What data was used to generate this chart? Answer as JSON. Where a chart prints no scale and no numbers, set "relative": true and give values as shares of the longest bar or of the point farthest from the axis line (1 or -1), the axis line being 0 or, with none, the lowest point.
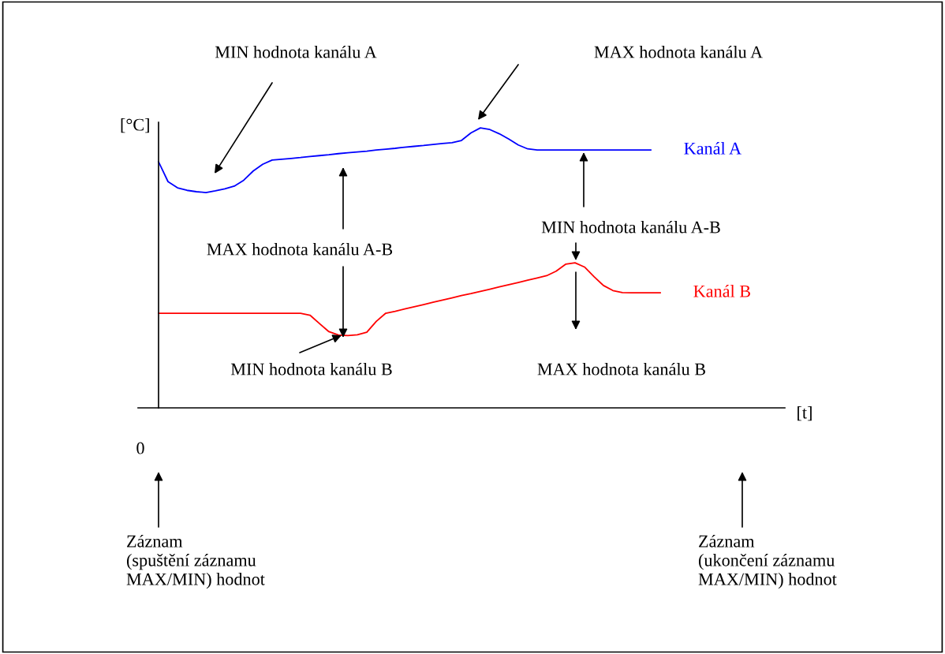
{
  "chart_data": {
    "type": "line",
    "relative": true,
    "legend": false,
    "ylabel": "[°C]",
    "categories": [
      null,
      null,
      null,
      null,
      null,
      null,
      null,
      null,
      null,
      null,
      null,
      null,
      null,
      null,
      null,
      null,
      null,
      null,
      null,
      null,
      null,
      null,
      null,
      null,
      null,
      null,
      null,
      null,
      null,
      null,
      null,
      null,
      null,
      null,
      null,
      null,
      null,
      null,
      null,
      null,
      null,
      null,
      null,
      null,
      null,
      null,
      null,
      null,
      null,
      null,
      null,
      null,
      null,
      null
    ],
    "series": [
      {
        "name": "Kanál A",
        "color": "#0000ff",
        "values": [
          0.879,
          0.808,
          0.786,
          0.777,
          0.772,
          0.769,
          0.775,
          0.782,
          0.792,
          0.813,
          0.846,
          0.87,
          0.885,
          0.888,
          0.891,
          0.894,
          0.898,
          0.901,
          0.904,
          0.908,
          0.911,
          0.914,
          0.917,
          0.921,
          0.924,
          0.927,
          0.931,
          0.934,
          0.937,
          0.941,
          0.944,
          0.947,
          0.955,
          0.982,
          1,
          0.994,
          0.979,
          0.96,
          0.939,
          0.925,
          0.921,
          0.921,
          0.921,
          0.921,
          0.921,
          0.921,
          0.921,
          0.921,
          0.921,
          0.921,
          0.921,
          0.921,
          0.921,
          null
        ]
      },
      {
        "name": "Kanál B",
        "color": "#ff0000",
        "values": [
          0.338,
          0.338,
          0.338,
          0.338,
          0.338,
          0.338,
          0.338,
          0.338,
          0.338,
          0.338,
          0.338,
          0.338,
          0.338,
          0.338,
          0.338,
          0.338,
          0.331,
          0.301,
          0.272,
          0.26,
          0.258,
          0.261,
          0.27,
          0.309,
          0.338,
          0.345,
          0.353,
          0.361,
          0.369,
          0.377,
          0.385,
          0.393,
          0.401,
          0.408,
          0.416,
          0.424,
          0.432,
          0.44,
          0.448,
          0.456,
          0.464,
          0.472,
          0.488,
          0.513,
          0.518,
          0.503,
          0.469,
          0.437,
          0.419,
          0.412,
          0.411,
          0.411,
          0.411,
          0.411
        ]
      }
    ],
    "annotations": [
      "MIN hodnota kanálu A",
      "MAX hodnota kanálu A",
      "MAX hodnota kanálu A-B",
      "MIN hodnota kanálu B",
      "MIN hodnota kanálu A-B",
      "MAX hodnota kanálu B",
      "Záznam\n(spuštění záznamu\nMAX/MIN) hodnot",
      "Záznam\n(ukončení záznamu\nMAX/MIN) hodnot",
      "0",
      "[t]"
    ]
  }
}
